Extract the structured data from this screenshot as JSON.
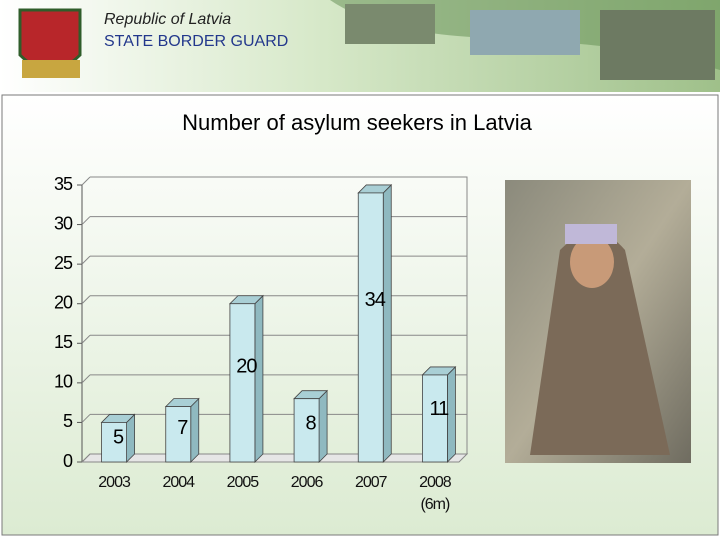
{
  "header": {
    "title": "Republic of Latvia",
    "subtitle": "STATE BORDER GUARD"
  },
  "chart_data": {
    "type": "bar",
    "title": "Number of asylum seekers in Latvia",
    "categories": [
      "2003",
      "2004",
      "2005",
      "2006",
      "2007",
      "2008 (6m)"
    ],
    "values": [
      5,
      7,
      20,
      8,
      34,
      11
    ],
    "color": "#c9e9ee",
    "ylim": [
      0,
      35
    ],
    "yticks": [
      0,
      5,
      10,
      15,
      20,
      25,
      30,
      35
    ],
    "grid": true
  }
}
